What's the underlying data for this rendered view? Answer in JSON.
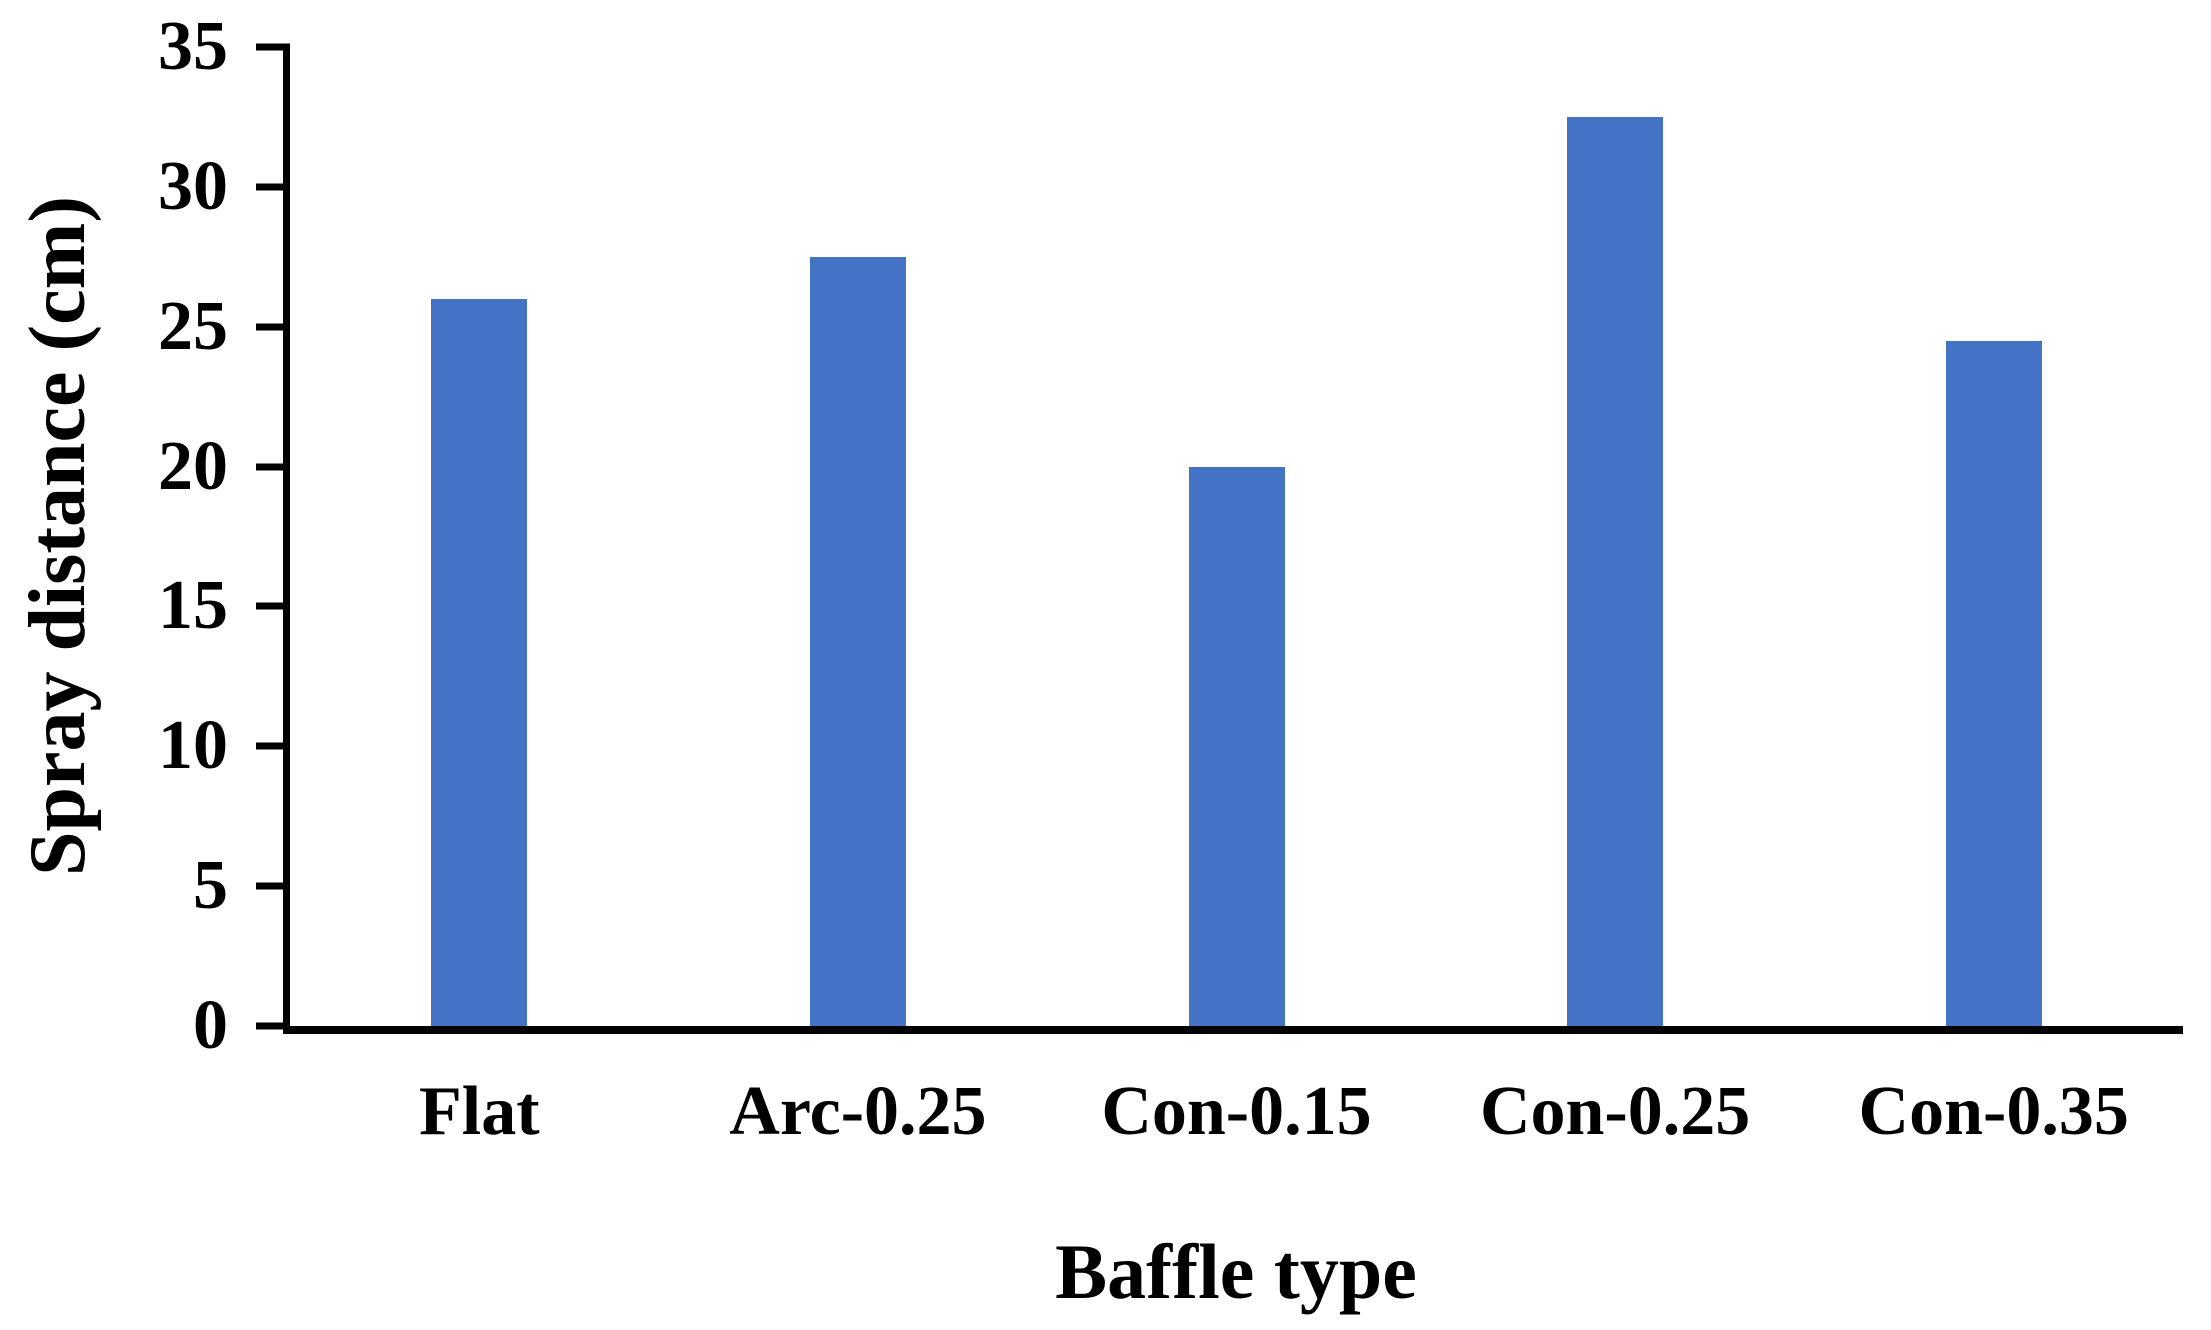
{
  "chart_data": {
    "type": "bar",
    "title": "",
    "xlabel": "Baffle type",
    "ylabel": "Spray distance (cm)",
    "categories": [
      "Flat",
      "Arc-0.25",
      "Con-0.15",
      "Con-0.25",
      "Con-0.35"
    ],
    "values": [
      26,
      27.5,
      20,
      32.5,
      24.5
    ],
    "ylim": [
      0,
      35
    ],
    "yticks": [
      0,
      5,
      10,
      15,
      20,
      25,
      30,
      35
    ],
    "grid": false,
    "legend_position": "none",
    "colors": {
      "bar": "#4472C4",
      "axis": "#000000",
      "background": "#FFFFFF",
      "text": "#000000"
    }
  }
}
